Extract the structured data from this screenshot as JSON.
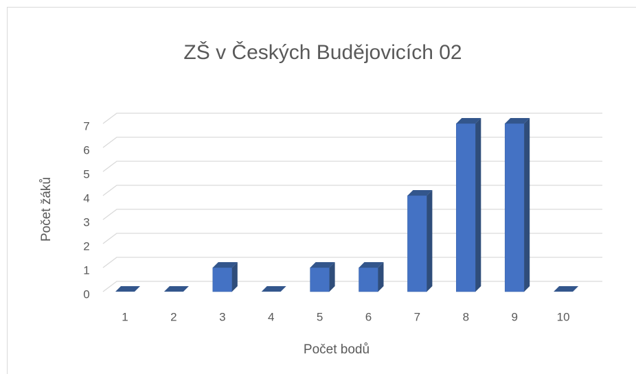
{
  "chart_data": {
    "type": "bar3d",
    "title": "ZŠ v Českých Budějovicích 02",
    "x_label": "Počet bodů",
    "y_label": "Počet žáků",
    "categories": [
      "1",
      "2",
      "3",
      "4",
      "5",
      "6",
      "7",
      "8",
      "9",
      "10"
    ],
    "values": [
      0,
      0,
      1,
      0,
      1,
      1,
      4,
      7,
      7,
      0
    ],
    "color": "#4472c4",
    "ylim": [
      0,
      7
    ],
    "yticks": [
      0,
      1,
      2,
      3,
      4,
      5,
      6,
      7
    ],
    "grid": true
  }
}
